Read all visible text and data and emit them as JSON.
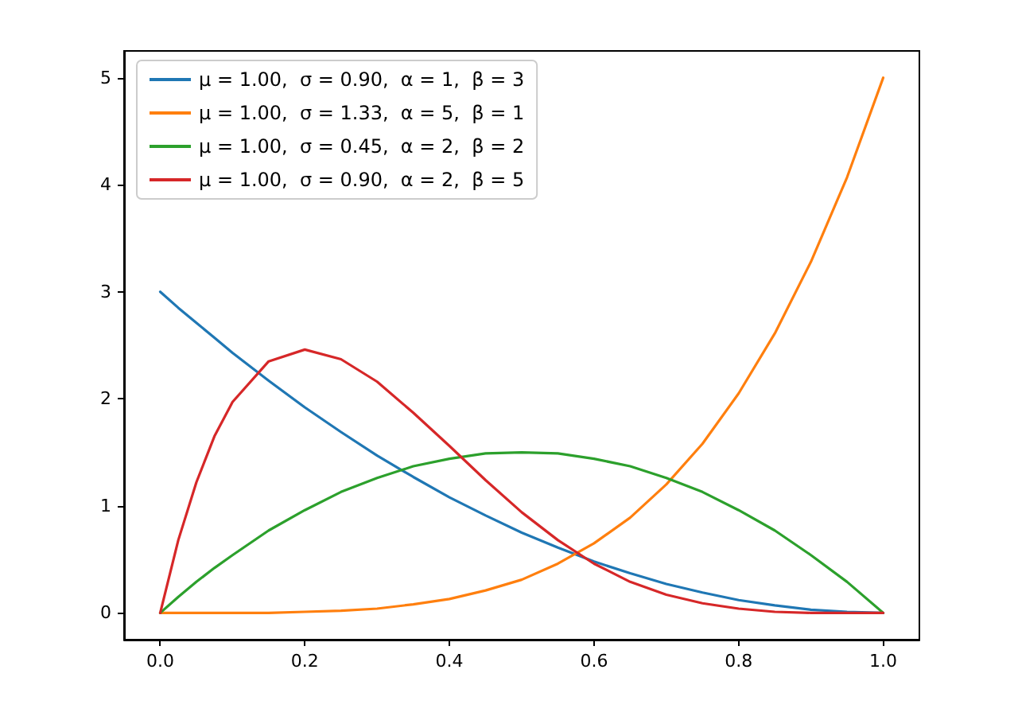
{
  "chart_data": {
    "type": "line",
    "x": [
      0,
      0.025,
      0.05,
      0.075,
      0.1,
      0.15,
      0.2,
      0.25,
      0.3,
      0.35,
      0.4,
      0.45,
      0.5,
      0.55,
      0.6,
      0.65,
      0.7,
      0.75,
      0.8,
      0.85,
      0.9,
      0.95,
      1.0
    ],
    "series": [
      {
        "name": "μ = 1.00,  σ = 0.90,  α = 1,  β = 3",
        "color": "#1f77b4",
        "values": [
          3.0,
          2.85,
          2.71,
          2.57,
          2.43,
          2.17,
          1.92,
          1.69,
          1.47,
          1.27,
          1.08,
          0.91,
          0.75,
          0.61,
          0.48,
          0.37,
          0.27,
          0.19,
          0.12,
          0.07,
          0.03,
          0.01,
          0.0
        ]
      },
      {
        "name": "μ = 1.00,  σ = 1.33,  α = 5,  β = 1",
        "color": "#ff7f0e",
        "values": [
          0.0,
          0.0,
          0.0,
          0.0,
          0.0,
          0.0,
          0.01,
          0.02,
          0.04,
          0.08,
          0.13,
          0.21,
          0.31,
          0.46,
          0.65,
          0.89,
          1.2,
          1.58,
          2.05,
          2.61,
          3.28,
          4.07,
          5.0
        ]
      },
      {
        "name": "μ = 1.00,  σ = 0.45,  α = 2,  β = 2",
        "color": "#2ca02c",
        "values": [
          0.0,
          0.15,
          0.29,
          0.42,
          0.54,
          0.77,
          0.96,
          1.13,
          1.26,
          1.37,
          1.44,
          1.49,
          1.5,
          1.49,
          1.44,
          1.37,
          1.26,
          1.13,
          0.96,
          0.77,
          0.54,
          0.29,
          0.0
        ]
      },
      {
        "name": "μ = 1.00,  σ = 0.90,  α = 2,  β = 5",
        "color": "#d62728",
        "values": [
          0.0,
          0.68,
          1.22,
          1.65,
          1.97,
          2.35,
          2.46,
          2.37,
          2.16,
          1.87,
          1.56,
          1.24,
          0.94,
          0.68,
          0.46,
          0.29,
          0.17,
          0.09,
          0.04,
          0.01,
          0.0,
          0.0,
          0.0
        ]
      }
    ],
    "xlim": [
      -0.05,
      1.05
    ],
    "xticks": [
      {
        "value": 0,
        "label": "0.0"
      },
      {
        "value": 0.2,
        "label": "0.2"
      },
      {
        "value": 0.4,
        "label": "0.4"
      },
      {
        "value": 0.6,
        "label": "0.6"
      },
      {
        "value": 0.8,
        "label": "0.8"
      },
      {
        "value": 1,
        "label": "1.0"
      }
    ],
    "ylim": [
      -0.25,
      5.25
    ],
    "yticks": [
      0,
      1,
      2,
      3,
      4,
      5
    ],
    "grid": false,
    "legend": "top left",
    "marker": "none",
    "line_style": "solid"
  }
}
